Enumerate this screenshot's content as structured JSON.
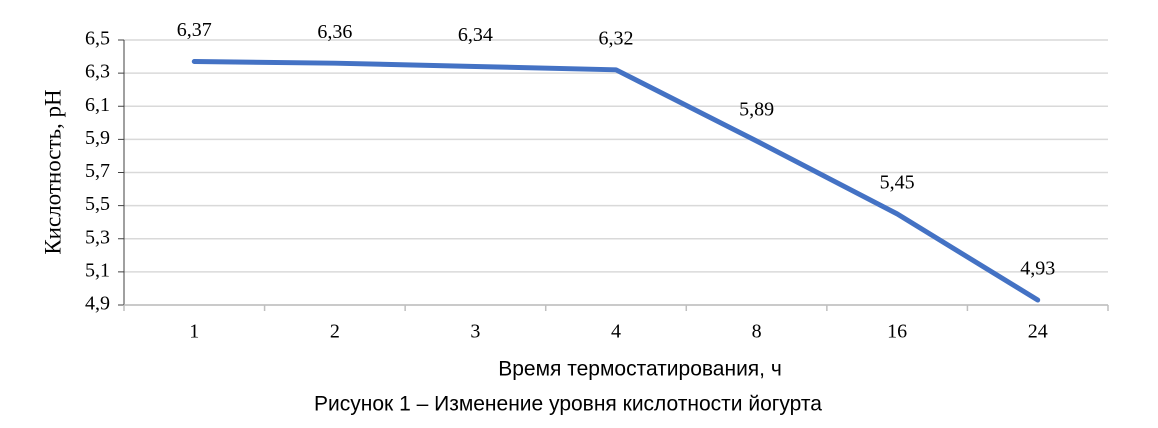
{
  "chart_data": {
    "type": "line",
    "x_label": "Время термостатирования, ч",
    "y_label": "Кислотность, pH",
    "caption": "Рисунок 1 – Изменение уровня кислотности йогурта",
    "categories": [
      "1",
      "2",
      "3",
      "4",
      "8",
      "16",
      "24"
    ],
    "values": [
      6.37,
      6.36,
      6.34,
      6.32,
      5.89,
      5.45,
      4.93
    ],
    "value_labels": [
      "6,37",
      "6,36",
      "6,34",
      "6,32",
      "5,89",
      "5,45",
      "4,93"
    ],
    "color": "#4472c4",
    "ylim": [
      4.9,
      6.5
    ],
    "yticks": [
      {
        "value": 4.9,
        "label": "4,9"
      },
      {
        "value": 5.1,
        "label": "5,1"
      },
      {
        "value": 5.3,
        "label": "5,3"
      },
      {
        "value": 5.5,
        "label": "5,5"
      },
      {
        "value": 5.7,
        "label": "5,7"
      },
      {
        "value": 5.9,
        "label": "5,9"
      },
      {
        "value": 6.1,
        "label": "6,1"
      },
      {
        "value": 6.3,
        "label": "6,3"
      },
      {
        "value": 6.5,
        "label": "6,5"
      }
    ],
    "grid": true
  }
}
